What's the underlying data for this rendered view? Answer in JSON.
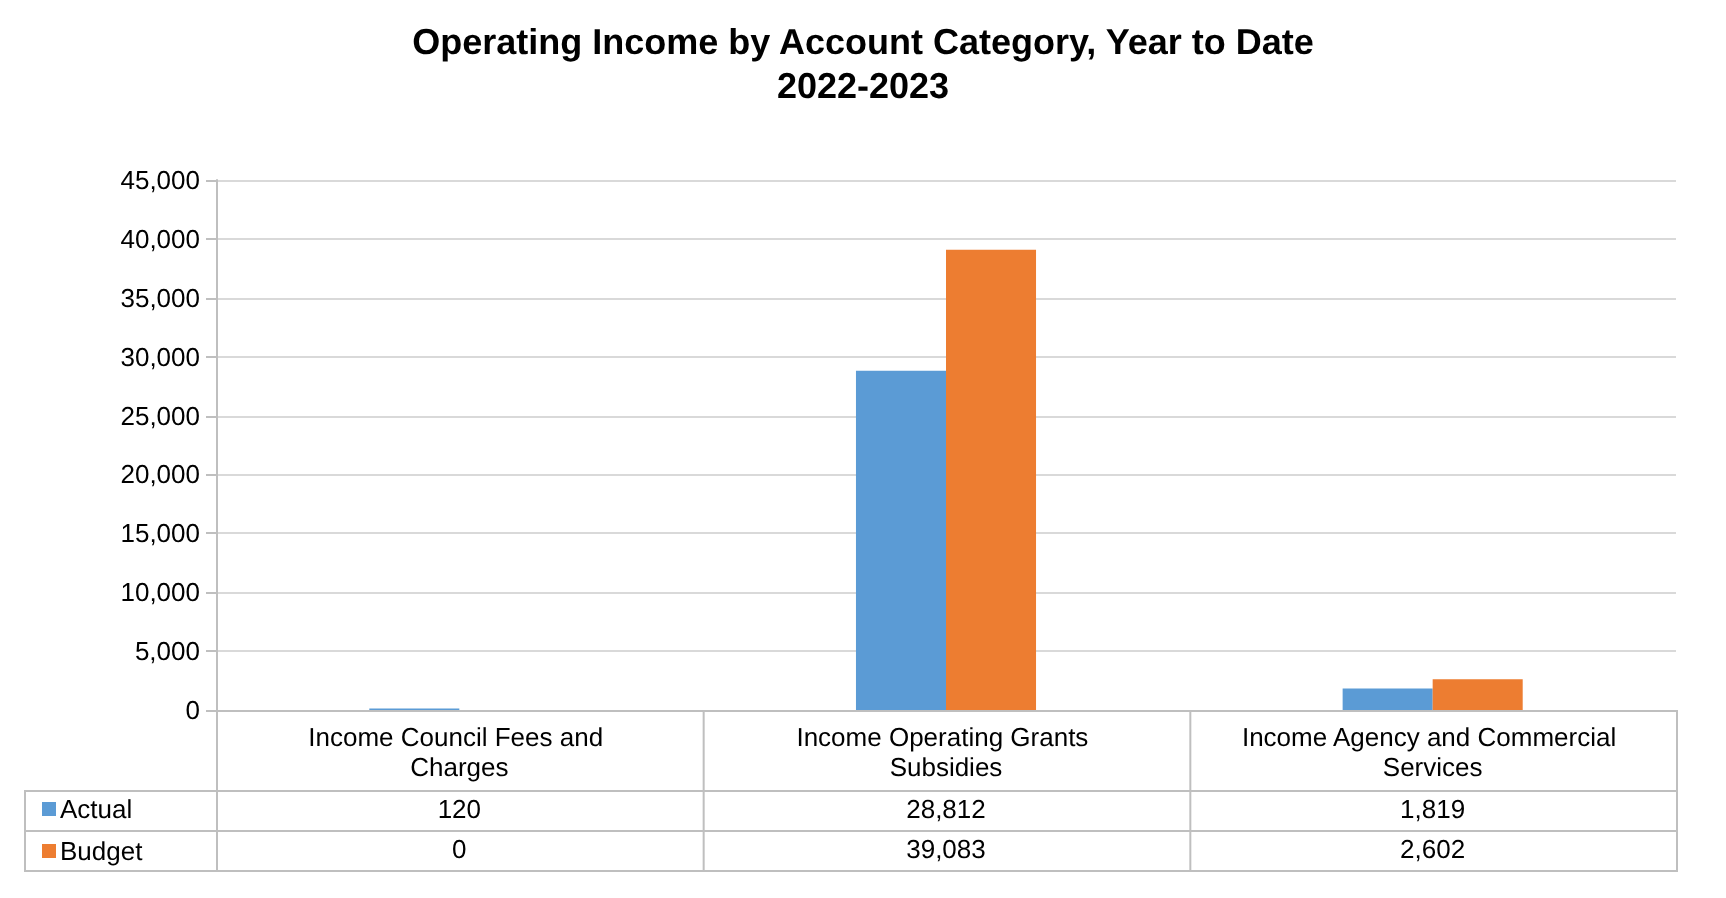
{
  "chart_data": {
    "type": "bar",
    "title": "Operating Income by Account Category, Year to Date",
    "subtitle": "2022-2023",
    "categories": [
      "Income Council Fees and Charges",
      "Income Operating Grants Subsidies",
      "Income Agency and Commercial Services"
    ],
    "series": [
      {
        "name": "Actual",
        "color": "#5b9bd5",
        "values": [
          120,
          28812,
          1819
        ],
        "value_labels": [
          "120",
          "28,812",
          "1,819"
        ]
      },
      {
        "name": "Budget",
        "color": "#ed7d31",
        "values": [
          0,
          39083,
          2602
        ],
        "value_labels": [
          "0",
          "39,083",
          "2,602"
        ]
      }
    ],
    "ylim": [
      0,
      45000
    ],
    "yticks": [
      {
        "value": 0,
        "label": "0"
      },
      {
        "value": 5000,
        "label": "5,000"
      },
      {
        "value": 10000,
        "label": "10,000"
      },
      {
        "value": 15000,
        "label": "15,000"
      },
      {
        "value": 20000,
        "label": "20,000"
      },
      {
        "value": 25000,
        "label": "25,000"
      },
      {
        "value": 30000,
        "label": "30,000"
      },
      {
        "value": 35000,
        "label": "35,000"
      },
      {
        "value": 40000,
        "label": "40,000"
      },
      {
        "value": 45000,
        "label": "45,000"
      }
    ],
    "grid": "y",
    "legend": "bottom left"
  }
}
